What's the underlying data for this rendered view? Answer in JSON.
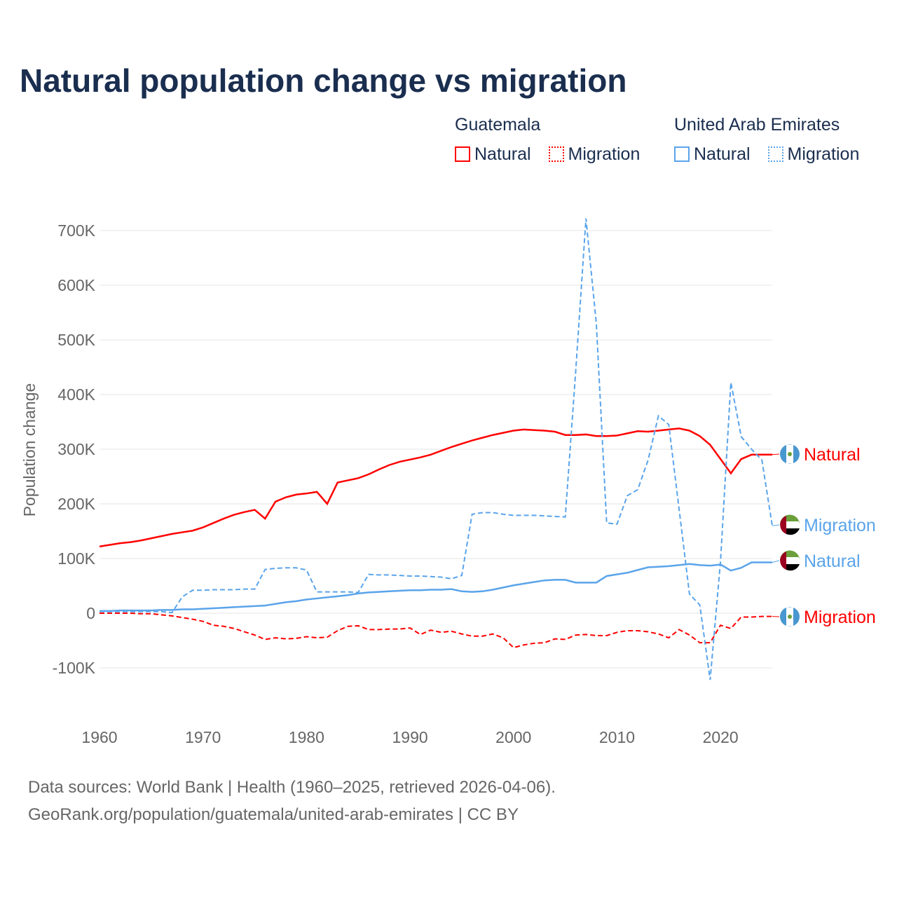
{
  "title": "Natural population change vs migration",
  "legend": {
    "groups": [
      {
        "country": "Guatemala",
        "items": [
          "Natural",
          "Migration"
        ],
        "color": "#ff0000"
      },
      {
        "country": "United Arab Emirates",
        "items": [
          "Natural",
          "Migration"
        ],
        "color": "#5aa4ea"
      }
    ]
  },
  "source": {
    "line1": "Data sources: World Bank | Health (1960–2025, retrieved 2026-04-06).",
    "line2": "GeoRank.org/population/guatemala/united-arab-emirates | CC BY"
  },
  "chart_data": {
    "type": "line",
    "title": "Natural population change vs migration",
    "xlabel": "",
    "ylabel": "Population change",
    "xlim": [
      1960,
      2025
    ],
    "ylim": [
      -150000,
      730000
    ],
    "xticks": [
      1960,
      1970,
      1980,
      1990,
      2000,
      2010,
      2020
    ],
    "yticks": [
      -100000,
      0,
      100000,
      200000,
      300000,
      400000,
      500000,
      600000,
      700000
    ],
    "ytick_labels": [
      "-100K",
      "0",
      "100K",
      "200K",
      "300K",
      "400K",
      "500K",
      "600K",
      "700K"
    ],
    "x_start": 1960,
    "series": [
      {
        "name": "Guatemala Natural",
        "label": "Natural",
        "color": "#ff0000",
        "dash": false,
        "flag": "guatemala",
        "values_k": [
          122,
          125,
          128,
          130,
          133,
          137,
          141,
          145,
          148,
          151,
          157,
          165,
          173,
          180,
          185,
          189,
          173,
          204,
          212,
          217,
          219,
          222,
          200,
          239,
          243,
          247,
          254,
          263,
          271,
          277,
          281,
          285,
          290,
          297,
          304,
          310,
          316,
          321,
          326,
          330,
          334,
          336,
          335,
          334,
          332,
          326,
          326,
          327,
          324,
          324,
          325,
          329,
          333,
          332,
          334,
          336,
          338,
          334,
          324,
          308,
          282,
          256,
          282,
          290,
          290,
          290
        ]
      },
      {
        "name": "Guatemala Migration",
        "label": "Migration",
        "color": "#ff0000",
        "dash": true,
        "flag": "guatemala",
        "values_k": [
          0,
          0,
          0,
          0,
          -1,
          -1,
          -3,
          -5,
          -8,
          -11,
          -15,
          -22,
          -24,
          -28,
          -34,
          -40,
          -48,
          -45,
          -47,
          -46,
          -43,
          -45,
          -44,
          -32,
          -24,
          -23,
          -30,
          -30,
          -29,
          -29,
          -27,
          -39,
          -31,
          -35,
          -33,
          -38,
          -42,
          -42,
          -38,
          -45,
          -63,
          -58,
          -55,
          -54,
          -47,
          -48,
          -40,
          -39,
          -41,
          -41,
          -35,
          -32,
          -32,
          -34,
          -38,
          -45,
          -30,
          -40,
          -54,
          -54,
          -22,
          -28,
          -7,
          -7,
          -6,
          -6
        ]
      },
      {
        "name": "United Arab Emirates Natural",
        "label": "Natural",
        "color": "#5aa4ea",
        "dash": false,
        "flag": "uae",
        "values_k": [
          4,
          4,
          5,
          5,
          5,
          5,
          6,
          6,
          7,
          7,
          8,
          9,
          10,
          11,
          12,
          13,
          14,
          17,
          20,
          22,
          25,
          27,
          29,
          31,
          33,
          36,
          38,
          39,
          40,
          41,
          42,
          42,
          43,
          43,
          44,
          40,
          39,
          40,
          43,
          47,
          51,
          54,
          57,
          60,
          61,
          61,
          56,
          56,
          56,
          68,
          71,
          74,
          79,
          84,
          85,
          86,
          88,
          90,
          88,
          87,
          89,
          78,
          83,
          93,
          93,
          93
        ]
      },
      {
        "name": "United Arab Emirates Migration",
        "label": "Migration",
        "color": "#5aa4ea",
        "dash": true,
        "flag": "uae",
        "values_k": [
          3,
          3,
          3,
          3,
          3,
          3,
          3,
          1,
          30,
          42,
          42,
          43,
          43,
          43,
          44,
          44,
          80,
          82,
          83,
          83,
          79,
          39,
          39,
          39,
          39,
          38,
          71,
          70,
          70,
          69,
          68,
          68,
          67,
          66,
          63,
          69,
          181,
          184,
          184,
          181,
          179,
          179,
          179,
          178,
          177,
          176,
          440,
          722,
          530,
          165,
          163,
          215,
          226,
          280,
          361,
          345,
          190,
          35,
          15,
          -122,
          95,
          422,
          323,
          300,
          280,
          160
        ]
      }
    ]
  }
}
